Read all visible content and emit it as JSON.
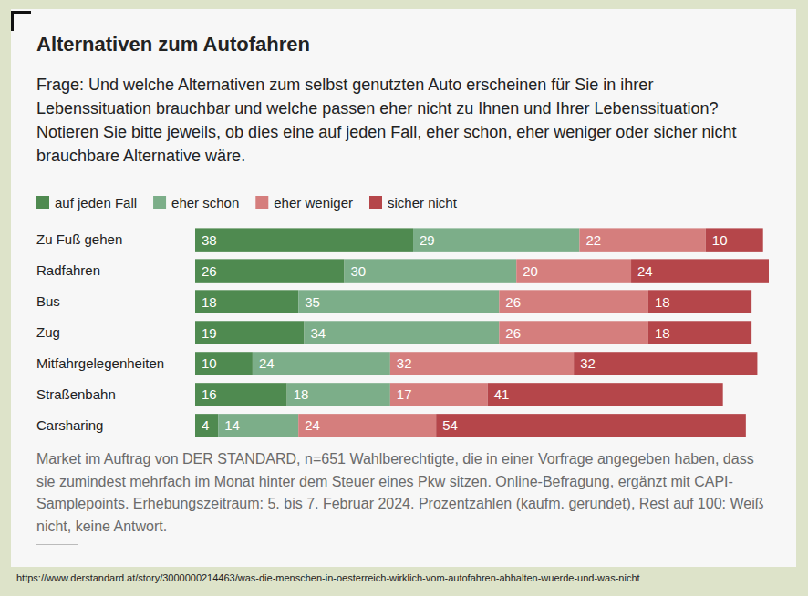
{
  "chart_data": {
    "type": "bar",
    "orientation": "horizontal",
    "stacked": true,
    "data_labels": true,
    "tick_labels": "y",
    "legend": "top-left",
    "title": "Alternativen zum Autofahren",
    "subtitle": "Frage: Und welche Alternativen zum selbst genutzten Auto erscheinen für Sie in ihrer Lebenssituation brauchbar und welche passen eher nicht zu Ihnen und Ihrer Lebenssituation? Notieren Sie bitte jeweils, ob dies eine auf jeden Fall, eher schon, eher weniger oder sicher nicht brauchbare Alternative wäre.",
    "note": "Market im Auftrag von DER STANDARD, n=651 Wahlberechtigte, die in einer Vorfrage angegeben haben, dass sie zumindest mehrfach im Monat hinter dem Steuer eines Pkw sitzen. Online-Befragung, ergänzt mit CAPI-Samplepoints. Erhebungszeitraum: 5. bis 7. Februar 2024. Prozentzahlen (kaufm. gerundet), Rest auf 100: Weiß nicht, keine Antwort.",
    "source": "https://www.derstandard.at/story/3000000214463/was-die-menschen-in-oesterreich-wirklich-vom-autofahren-abhalten-wuerde-und-was-nicht",
    "categories": [
      "Zu Fuß gehen",
      "Radfahren",
      "Bus",
      "Zug",
      "Mitfahrgelegenheiten",
      "Straßenbahn",
      "Carsharing"
    ],
    "xlim": [
      0,
      100
    ],
    "series": [
      {
        "name": "auf jeden Fall",
        "color": "#4f8a50",
        "values": [
          38,
          26,
          18,
          19,
          10,
          16,
          4
        ]
      },
      {
        "name": "eher schon",
        "color": "#7cae89",
        "values": [
          29,
          30,
          35,
          34,
          24,
          18,
          14
        ]
      },
      {
        "name": "eher weniger",
        "color": "#d57e7d",
        "values": [
          22,
          20,
          26,
          26,
          32,
          17,
          24
        ]
      },
      {
        "name": "sicher nicht",
        "color": "#b5464a",
        "values": [
          10,
          24,
          18,
          18,
          32,
          41,
          54
        ]
      }
    ]
  }
}
